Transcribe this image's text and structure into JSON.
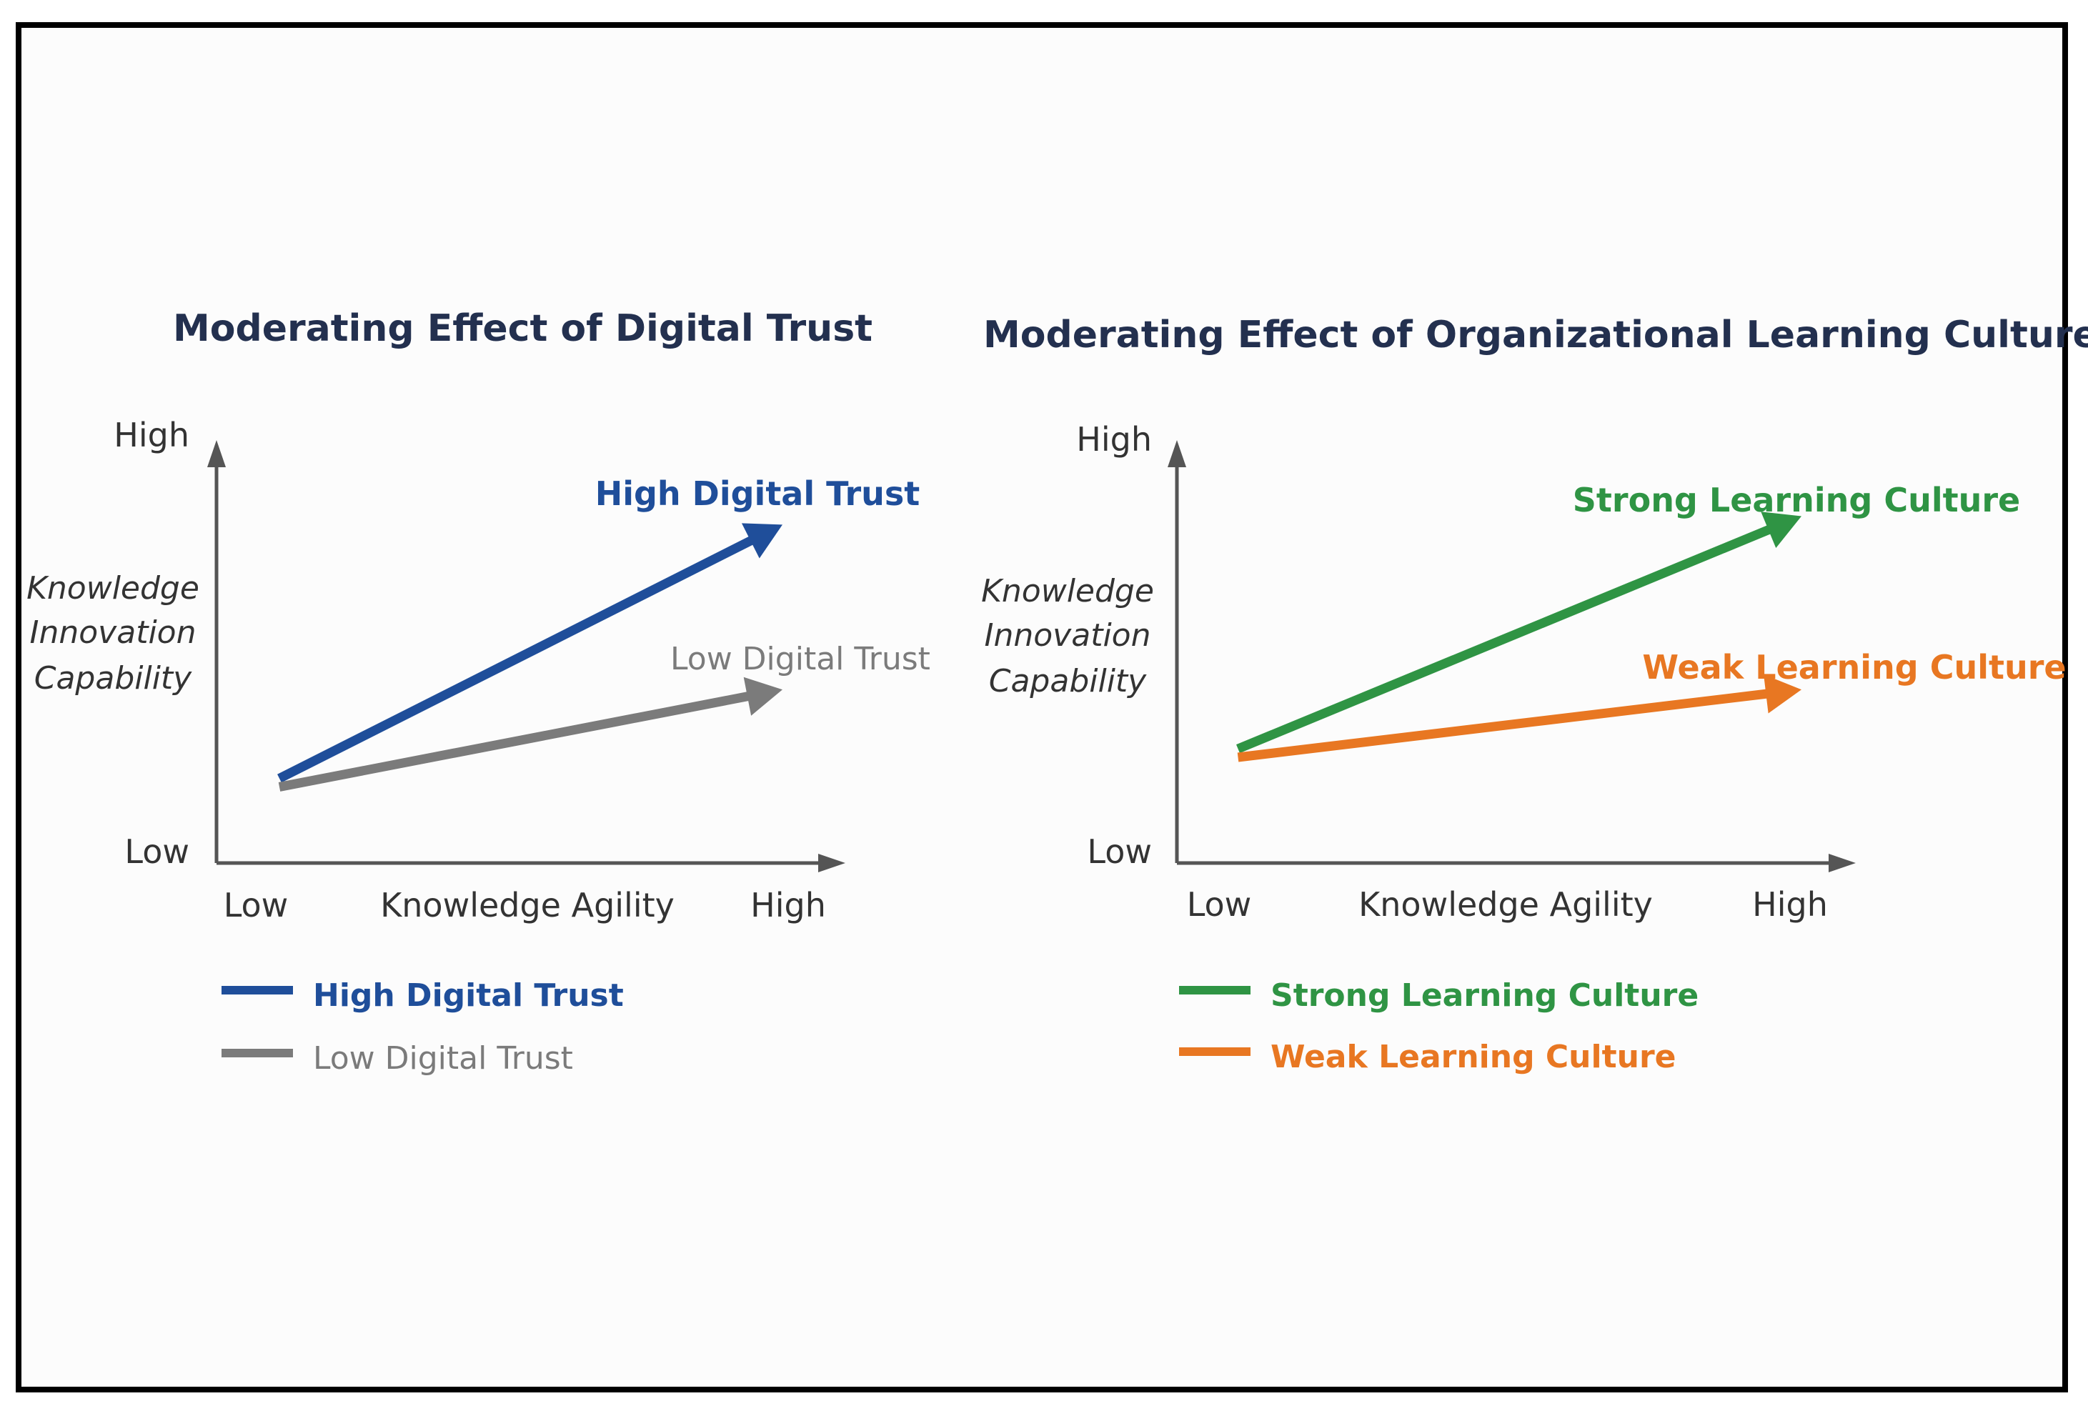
{
  "chart_data": [
    {
      "type": "line",
      "title": "Moderating Effect of Digital Trust",
      "xlabel": "Knowledge Agility",
      "ylabel": "Knowledge Innovation Capability",
      "ylabel_lines": [
        "Knowledge",
        "Innovation",
        "Capability"
      ],
      "x_ticks": [
        "Low",
        "High"
      ],
      "y_ticks": [
        "Low",
        "High"
      ],
      "xlim": [
        0,
        1
      ],
      "ylim": [
        0,
        1
      ],
      "legend_position": "bottom-left",
      "grid": false,
      "series": [
        {
          "name": "High Digital Trust",
          "color": "#1f4e9a",
          "bold": true,
          "x": [
            0.1,
            0.9
          ],
          "y": [
            0.2,
            0.8
          ]
        },
        {
          "name": "Low Digital Trust",
          "color": "#7b7b7b",
          "bold": false,
          "x": [
            0.1,
            0.9
          ],
          "y": [
            0.18,
            0.41
          ]
        }
      ]
    },
    {
      "type": "line",
      "title": "Moderating Effect of Organizational Learning Culture",
      "xlabel": "Knowledge Agility",
      "ylabel": "Knowledge Innovation Capability",
      "ylabel_lines": [
        "Knowledge",
        "Innovation",
        "Capability"
      ],
      "x_ticks": [
        "Low",
        "High"
      ],
      "y_ticks": [
        "Low",
        "High"
      ],
      "xlim": [
        0,
        1
      ],
      "ylim": [
        0,
        1
      ],
      "legend_position": "bottom-left",
      "grid": false,
      "series": [
        {
          "name": "Strong Learning Culture",
          "color": "#2f9444",
          "bold": true,
          "x": [
            0.09,
            0.92
          ],
          "y": [
            0.27,
            0.82
          ]
        },
        {
          "name": "Weak Learning Culture",
          "color": "#e87722",
          "bold": true,
          "x": [
            0.09,
            0.92
          ],
          "y": [
            0.25,
            0.41
          ]
        }
      ]
    }
  ]
}
